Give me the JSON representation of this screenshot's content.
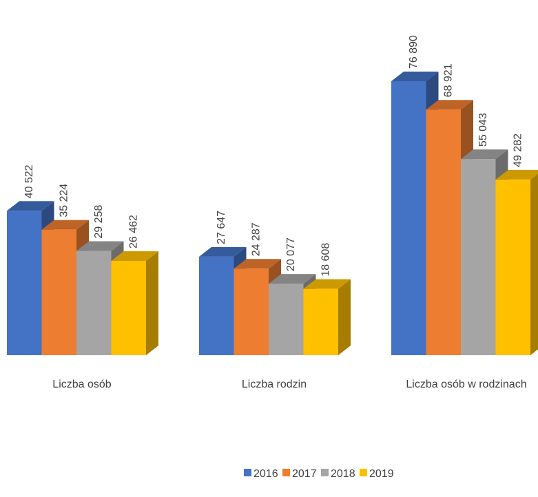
{
  "chart_data": {
    "type": "bar3d",
    "categories": [
      "Liczba osób",
      "Liczba rodzin",
      "Liczba osób w rodzinach"
    ],
    "series": [
      {
        "name": "2016",
        "color": "#4472c4",
        "values": [
          40522,
          27647,
          76890
        ],
        "value_labels": [
          "40 522",
          "27 647",
          "76 890"
        ]
      },
      {
        "name": "2017",
        "color": "#ed7d31",
        "values": [
          35224,
          24287,
          68921
        ],
        "value_labels": [
          "35 224",
          "24 287",
          "68 921"
        ]
      },
      {
        "name": "2018",
        "color": "#a5a5a5",
        "values": [
          29258,
          20077,
          55043
        ],
        "value_labels": [
          "29 258",
          "20 077",
          "55 043"
        ]
      },
      {
        "name": "2019",
        "color": "#ffc000",
        "values": [
          26462,
          18608,
          49282
        ],
        "value_labels": [
          "26 462",
          "18 608",
          "49 282"
        ]
      }
    ],
    "legend": "bottom"
  }
}
